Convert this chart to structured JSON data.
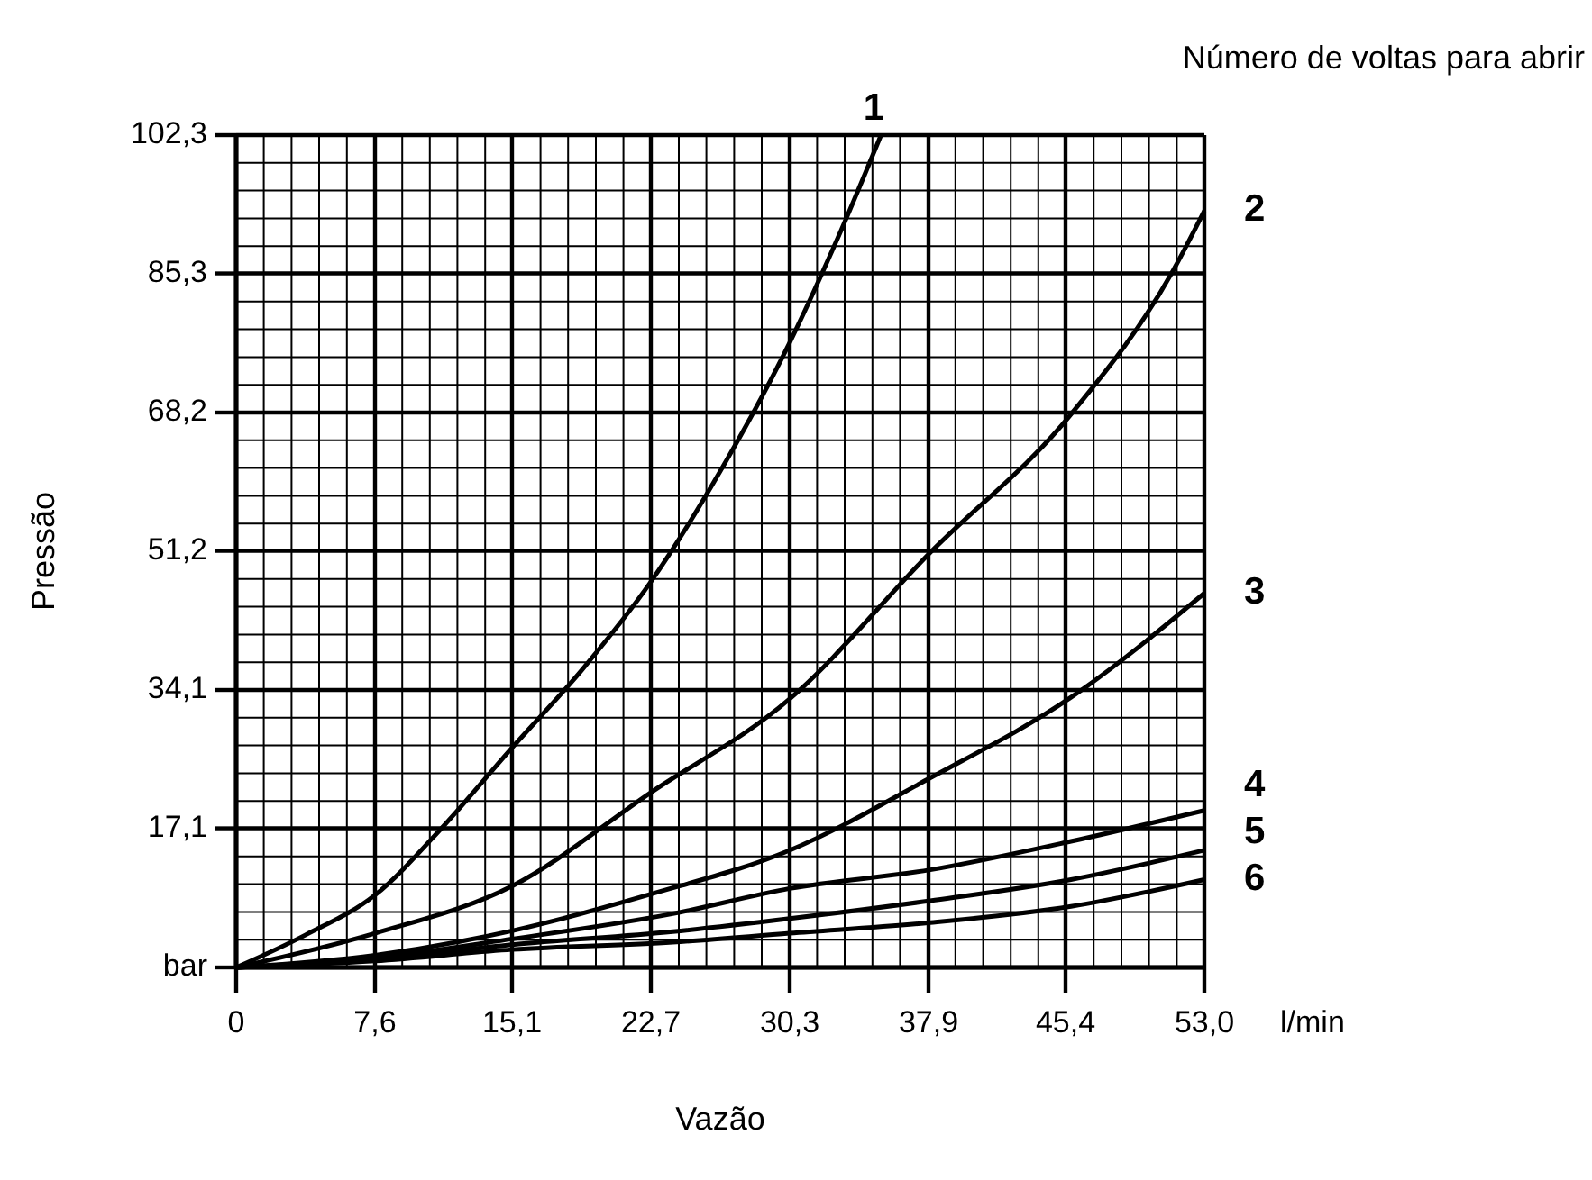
{
  "chart_data": {
    "type": "line",
    "xlabel": "Vazão",
    "ylabel": "Pressão",
    "legend_title": "Número de voltas para abrir",
    "annotations": [
      "l/min"
    ],
    "xlim": [
      0,
      53.0
    ],
    "ylim": [
      0,
      102.3
    ],
    "xticks": [
      0,
      {
        "value": 1.51,
        "label": null
      },
      {
        "value": 3.03,
        "label": null
      },
      {
        "value": 4.54,
        "label": null
      },
      {
        "value": 6.06,
        "label": null
      },
      {
        "value": 7.6,
        "label": "7,6"
      },
      {
        "value": 9.09,
        "label": null
      },
      {
        "value": 10.6,
        "label": null
      },
      {
        "value": 12.11,
        "label": null
      },
      {
        "value": 13.63,
        "label": null
      },
      {
        "value": 15.1,
        "label": "15,1"
      },
      {
        "value": 16.66,
        "label": null
      },
      {
        "value": 18.17,
        "label": null
      },
      {
        "value": 19.69,
        "label": null
      },
      {
        "value": 21.2,
        "label": null
      },
      {
        "value": 22.7,
        "label": "22,7"
      },
      {
        "value": 24.23,
        "label": null
      },
      {
        "value": 25.74,
        "label": null
      },
      {
        "value": 27.26,
        "label": null
      },
      {
        "value": 28.77,
        "label": null
      },
      {
        "value": 30.3,
        "label": "30,3"
      },
      {
        "value": 31.8,
        "label": null
      },
      {
        "value": 33.31,
        "label": null
      },
      {
        "value": 34.83,
        "label": null
      },
      {
        "value": 36.34,
        "label": null
      },
      {
        "value": 37.9,
        "label": "37,9"
      },
      {
        "value": 39.37,
        "label": null
      },
      {
        "value": 40.89,
        "label": null
      },
      {
        "value": 42.4,
        "label": null
      },
      {
        "value": 43.91,
        "label": null
      },
      {
        "value": 45.4,
        "label": "45,4"
      },
      {
        "value": 46.94,
        "label": null
      },
      {
        "value": 48.46,
        "label": null
      },
      {
        "value": 49.97,
        "label": null
      },
      {
        "value": 51.49,
        "label": null
      },
      {
        "value": 53.0,
        "label": "53,0"
      }
    ],
    "yticks": [
      {
        "value": 0,
        "label": "bar"
      },
      {
        "value": 3.41,
        "label": null
      },
      {
        "value": 6.82,
        "label": null
      },
      {
        "value": 10.23,
        "label": null
      },
      {
        "value": 13.64,
        "label": null
      },
      {
        "value": 17.1,
        "label": "17,1"
      },
      {
        "value": 20.46,
        "label": null
      },
      {
        "value": 23.87,
        "label": null
      },
      {
        "value": 27.28,
        "label": null
      },
      {
        "value": 30.69,
        "label": null
      },
      {
        "value": 34.1,
        "label": "34,1"
      },
      {
        "value": 37.51,
        "label": null
      },
      {
        "value": 40.92,
        "label": null
      },
      {
        "value": 44.33,
        "label": null
      },
      {
        "value": 47.74,
        "label": null
      },
      {
        "value": 51.2,
        "label": "51,2"
      },
      {
        "value": 54.56,
        "label": null
      },
      {
        "value": 57.97,
        "label": null
      },
      {
        "value": 61.38,
        "label": null
      },
      {
        "value": 64.79,
        "label": null
      },
      {
        "value": 68.2,
        "label": "68,2"
      },
      {
        "value": 71.61,
        "label": null
      },
      {
        "value": 75.02,
        "label": null
      },
      {
        "value": 78.43,
        "label": null
      },
      {
        "value": 81.84,
        "label": null
      },
      {
        "value": 85.3,
        "label": "85,3"
      },
      {
        "value": 88.66,
        "label": null
      },
      {
        "value": 92.07,
        "label": null
      },
      {
        "value": 95.48,
        "label": null
      },
      {
        "value": 98.89,
        "label": null
      },
      {
        "value": 102.3,
        "label": "102,3"
      }
    ],
    "grid": true,
    "marker": "none",
    "line_style": "solid",
    "series": [
      {
        "name": "1",
        "color": "#000000",
        "x": [
          0,
          3.8,
          7.6,
          11.4,
          15.1,
          18.9,
          22.7,
          26.5,
          30.3,
          33,
          35.3
        ],
        "values": [
          0,
          4,
          8.9,
          17.5,
          27,
          36.5,
          47.4,
          61,
          76.8,
          90,
          102.3
        ]
      },
      {
        "name": "2",
        "color": "#000000",
        "x": [
          0,
          7.6,
          15.1,
          22.7,
          30.3,
          38,
          45.7,
          51.3,
          53
        ],
        "values": [
          0,
          4.2,
          10,
          21.5,
          33,
          51,
          68,
          85.7,
          93
        ]
      },
      {
        "name": "3",
        "color": "#000000",
        "x": [
          0,
          7.6,
          15.1,
          22.7,
          30.3,
          38,
          45.7,
          53
        ],
        "values": [
          0,
          1.5,
          4.5,
          9,
          14.4,
          23.3,
          33.2,
          46
        ]
      },
      {
        "name": "4",
        "color": "#000000",
        "x": [
          0,
          7.6,
          15.1,
          23.9,
          30.3,
          38,
          45.7,
          53
        ],
        "values": [
          0,
          1.2,
          3.5,
          6.6,
          9.7,
          12,
          15.5,
          19.3
        ]
      },
      {
        "name": "5",
        "color": "#000000",
        "x": [
          0,
          7.6,
          15.1,
          23.9,
          30.3,
          38,
          45.7,
          53
        ],
        "values": [
          0,
          1,
          2.8,
          4.4,
          6,
          8.2,
          10.8,
          14.4
        ]
      },
      {
        "name": "6",
        "color": "#000000",
        "x": [
          0,
          7.6,
          15.1,
          23.9,
          30.3,
          38,
          45.7,
          53
        ],
        "values": [
          0,
          0.8,
          2.2,
          3.1,
          4.2,
          5.5,
          7.5,
          10.8
        ]
      }
    ]
  }
}
